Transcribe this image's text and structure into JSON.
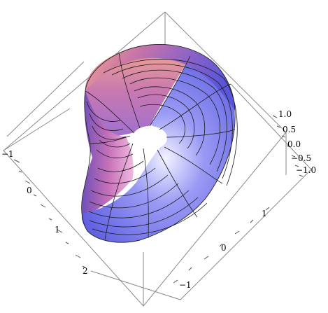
{
  "figure": {
    "type": "3d-surface-plot",
    "shape": "twisted torus-like surface",
    "colors": {
      "background": "#ffffff",
      "box": "#7a7a7a",
      "mesh": "#111111",
      "surface_pink": "#e9a0b4",
      "surface_salmon": "#f0a48c",
      "surface_purple": "#8b6fd0",
      "surface_blue": "#6f6ff0"
    }
  },
  "axes": {
    "right_axis_ticks": [
      "1.0",
      "0.5",
      "0.0",
      "−0.5",
      "−1.0"
    ],
    "left_axis_ticks": [
      "−1",
      "0",
      "1",
      "2"
    ],
    "bottom_axis_ticks": [
      "1",
      "0",
      "−1"
    ]
  }
}
